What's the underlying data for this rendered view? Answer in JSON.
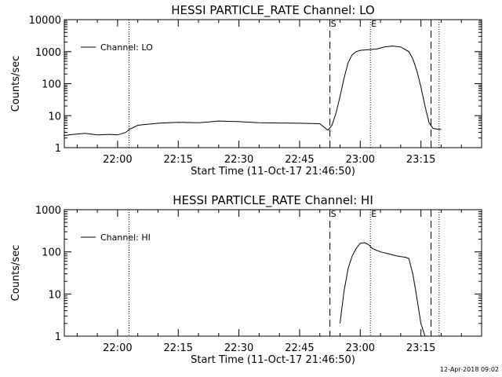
{
  "footer": {
    "timestamp": "12-Apr-2018 09:02"
  },
  "chart_data": [
    {
      "type": "line",
      "title": "HESSI PARTICLE_RATE Channel: LO",
      "xlabel": "Start Time (11-Oct-17 21:46:50)",
      "ylabel": "Counts/sec",
      "y_scale": "log",
      "ylim": [
        1,
        10000
      ],
      "xlim": [
        "21:46:50",
        "23:30:00"
      ],
      "x_ticks": [
        "22:00",
        "22:15",
        "22:30",
        "22:45",
        "23:00",
        "23:15"
      ],
      "y_ticks": [
        "1",
        "10",
        "100",
        "1000",
        "10000"
      ],
      "legend": {
        "position": "top-left",
        "entries": [
          "Channel: LO"
        ]
      },
      "markers": {
        "start_label": "S",
        "end_label": "E",
        "S_time": "22:52:30",
        "E_time": "23:02:30",
        "dashed_times": [
          "22:52:30",
          "23:17:30"
        ],
        "dotted_times": [
          "22:02:50",
          "23:02:30",
          "23:19:30"
        ]
      },
      "series": [
        {
          "x": [
            "21:46:50",
            "21:49:00",
            "21:52:00",
            "21:55:00",
            "21:58:00",
            "22:00:00",
            "22:02:00",
            "22:03:00",
            "22:05:00",
            "22:10:00",
            "22:15:00",
            "22:20:00",
            "22:25:00",
            "22:30:00",
            "22:35:00",
            "22:40:00",
            "22:45:00",
            "22:50:00",
            "22:52:00",
            "22:53:00",
            "22:54:00",
            "22:55:00",
            "22:56:00",
            "22:57:00",
            "22:58:00",
            "22:59:00",
            "23:00:00",
            "23:02:00",
            "23:04:00",
            "23:06:00",
            "23:08:00",
            "23:10:00",
            "23:12:00",
            "23:13:00",
            "23:14:00",
            "23:15:00",
            "23:16:00",
            "23:17:00",
            "23:18:00",
            "23:19:00",
            "23:20:00"
          ],
          "y": [
            2.4,
            2.6,
            2.8,
            2.5,
            2.6,
            2.5,
            3.0,
            3.8,
            5.0,
            5.8,
            6.2,
            6.0,
            6.8,
            6.5,
            6.0,
            5.9,
            5.8,
            5.6,
            3.5,
            5.0,
            12,
            40,
            150,
            450,
            800,
            1000,
            1100,
            1150,
            1200,
            1400,
            1500,
            1400,
            1000,
            600,
            250,
            80,
            20,
            6,
            4,
            3.8,
            3.7
          ]
        }
      ]
    },
    {
      "type": "line",
      "title": "HESSI PARTICLE_RATE Channel: HI",
      "xlabel": "Start Time (11-Oct-17 21:46:50)",
      "ylabel": "Counts/sec",
      "y_scale": "log",
      "ylim": [
        1,
        1000
      ],
      "xlim": [
        "21:46:50",
        "23:30:00"
      ],
      "x_ticks": [
        "22:00",
        "22:15",
        "22:30",
        "22:45",
        "23:00",
        "23:15"
      ],
      "y_ticks": [
        "1",
        "10",
        "100",
        "1000"
      ],
      "legend": {
        "position": "top-left",
        "entries": [
          "Channel: HI"
        ]
      },
      "markers": {
        "start_label": "S",
        "end_label": "E",
        "S_time": "22:52:30",
        "E_time": "23:02:30",
        "dashed_times": [
          "22:52:30",
          "23:17:30"
        ],
        "dotted_times": [
          "22:02:50",
          "23:02:30",
          "23:19:30"
        ]
      },
      "series": [
        {
          "x": [
            "22:55:00",
            "22:55:30",
            "22:56:00",
            "22:57:00",
            "22:58:00",
            "22:59:00",
            "23:00:00",
            "23:01:00",
            "23:02:00",
            "23:03:00",
            "23:05:00",
            "23:07:00",
            "23:09:00",
            "23:11:00",
            "23:12:00",
            "23:13:00",
            "23:14:00",
            "23:15:00",
            "23:16:00"
          ],
          "y": [
            2,
            5,
            12,
            40,
            80,
            120,
            160,
            165,
            150,
            120,
            100,
            90,
            80,
            75,
            70,
            30,
            8,
            2,
            1
          ]
        }
      ]
    }
  ]
}
